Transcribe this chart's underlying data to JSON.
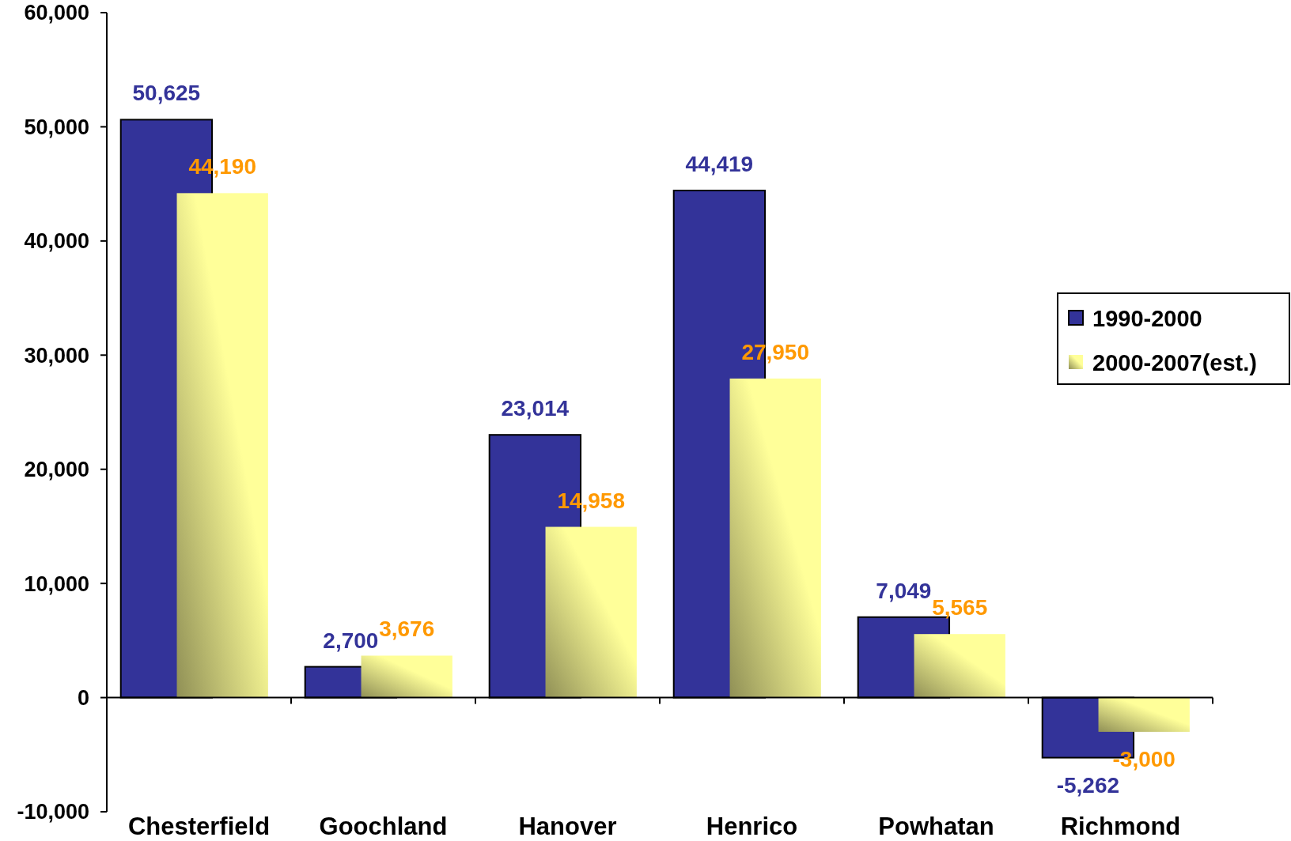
{
  "chart_data": {
    "type": "bar",
    "categories": [
      "Chesterfield",
      "Goochland",
      "Hanover",
      "Henrico",
      "Powhatan",
      "Richmond"
    ],
    "series": [
      {
        "name": "1990-2000",
        "color": "#333399",
        "values": [
          50625,
          2700,
          23014,
          44419,
          7049,
          -5262
        ],
        "value_labels": [
          "50,625",
          "2,700",
          "23,014",
          "44,419",
          "7,049",
          "-5,262"
        ]
      },
      {
        "name": "2000-2007(est.)",
        "color": "#ffff99",
        "values": [
          44190,
          3676,
          14958,
          27950,
          5565,
          -3000
        ],
        "value_labels": [
          "44,190",
          "3,676",
          "14,958",
          "27,950",
          "5,565",
          "-3,000"
        ]
      }
    ],
    "ylim": [
      -10000,
      60000
    ],
    "yticks": [
      {
        "value": -10000,
        "label": "-10,000"
      },
      0,
      {
        "value": 10000,
        "label": "10,000"
      },
      {
        "value": 20000,
        "label": "20,000"
      },
      {
        "value": 30000,
        "label": "30,000"
      },
      {
        "value": 40000,
        "label": "40,000"
      },
      {
        "value": 50000,
        "label": "50,000"
      },
      {
        "value": 60000,
        "label": "60,000"
      }
    ],
    "legend": "right"
  }
}
